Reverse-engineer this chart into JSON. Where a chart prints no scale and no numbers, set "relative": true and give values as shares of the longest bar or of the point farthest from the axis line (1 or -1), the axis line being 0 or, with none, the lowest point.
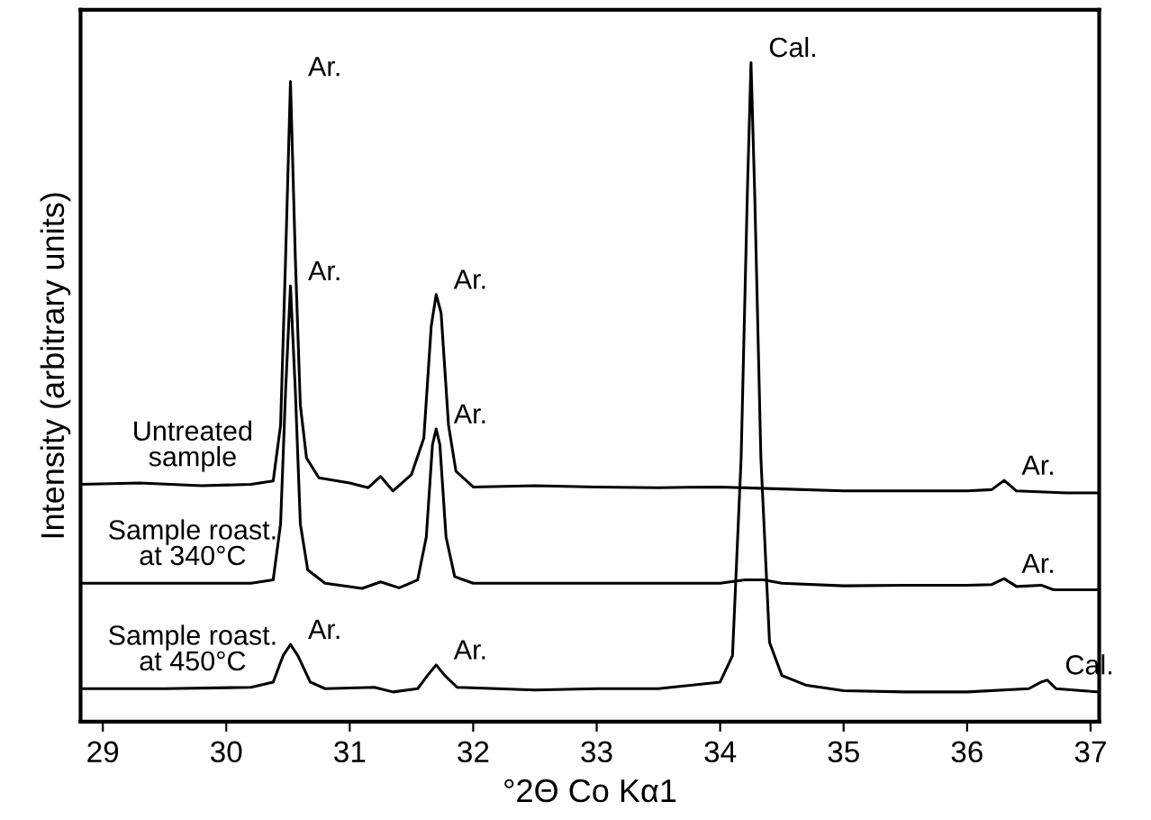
{
  "chart_data": {
    "type": "line",
    "relative": true,
    "xlabel": "°2Θ Co Kα1",
    "ylabel": "Intensity (arbitrary units)",
    "xlim": [
      28.82,
      37.07
    ],
    "xticks": [
      29,
      30,
      31,
      32,
      33,
      34,
      35,
      36,
      37
    ],
    "grid": false,
    "legend": false,
    "marker": "none",
    "line_style": "solid",
    "tick_labels": "x",
    "series": [
      {
        "name": "Untreated\nsample",
        "color": "#000000",
        "x": [
          28.82,
          29.3,
          29.8,
          30.2,
          30.38,
          30.44,
          30.48,
          30.52,
          30.56,
          30.6,
          30.65,
          30.75,
          31.0,
          31.15,
          31.25,
          31.35,
          31.5,
          31.6,
          31.66,
          31.7,
          31.74,
          31.8,
          31.86,
          32.0,
          32.5,
          33.0,
          33.5,
          34.0,
          34.5,
          35.0,
          35.5,
          36.0,
          36.2,
          36.3,
          36.4,
          36.8,
          37.07
        ],
        "values": [
          0.36,
          0.362,
          0.358,
          0.36,
          0.365,
          0.45,
          0.7,
          0.971,
          0.7,
          0.48,
          0.4,
          0.37,
          0.362,
          0.355,
          0.372,
          0.35,
          0.375,
          0.43,
          0.6,
          0.648,
          0.62,
          0.45,
          0.38,
          0.356,
          0.358,
          0.356,
          0.355,
          0.356,
          0.353,
          0.35,
          0.35,
          0.35,
          0.352,
          0.366,
          0.35,
          0.347,
          0.347
        ]
      },
      {
        "name": "Sample roast.\nat 340°C",
        "color": "#000000",
        "x": [
          28.82,
          29.5,
          30.2,
          30.38,
          30.44,
          30.48,
          30.52,
          30.56,
          30.6,
          30.66,
          30.8,
          31.1,
          31.25,
          31.4,
          31.55,
          31.62,
          31.67,
          31.7,
          31.73,
          31.78,
          31.85,
          32.0,
          33.0,
          34.0,
          34.2,
          34.35,
          34.5,
          35.0,
          35.5,
          36.0,
          36.2,
          36.3,
          36.4,
          36.6,
          36.7,
          37.07
        ],
        "values": [
          0.21,
          0.21,
          0.21,
          0.215,
          0.3,
          0.5,
          0.661,
          0.5,
          0.3,
          0.23,
          0.21,
          0.202,
          0.212,
          0.203,
          0.215,
          0.28,
          0.42,
          0.444,
          0.42,
          0.28,
          0.22,
          0.21,
          0.21,
          0.21,
          0.215,
          0.215,
          0.21,
          0.206,
          0.207,
          0.207,
          0.208,
          0.217,
          0.205,
          0.207,
          0.2,
          0.2
        ]
      },
      {
        "name": "Sample roast.\nat 450°C",
        "color": "#000000",
        "x": [
          28.82,
          29.5,
          30.2,
          30.38,
          30.46,
          30.52,
          30.58,
          30.68,
          30.8,
          31.2,
          31.35,
          31.55,
          31.63,
          31.7,
          31.77,
          31.87,
          32.5,
          33.0,
          33.5,
          34.0,
          34.1,
          34.17,
          34.22,
          34.25,
          34.28,
          34.33,
          34.4,
          34.5,
          34.7,
          35.0,
          35.5,
          36.0,
          36.5,
          36.6,
          36.65,
          36.72,
          37.07
        ],
        "values": [
          0.05,
          0.05,
          0.052,
          0.06,
          0.1,
          0.117,
          0.1,
          0.06,
          0.05,
          0.052,
          0.045,
          0.05,
          0.07,
          0.086,
          0.07,
          0.052,
          0.048,
          0.05,
          0.05,
          0.06,
          0.1,
          0.4,
          0.8,
          1.0,
          0.8,
          0.4,
          0.12,
          0.07,
          0.055,
          0.047,
          0.045,
          0.045,
          0.05,
          0.06,
          0.063,
          0.05,
          0.045
        ]
      }
    ],
    "annotations": [
      {
        "text": "Ar.",
        "x": 30.52,
        "y": 0.971
      },
      {
        "text": "Ar.",
        "x": 31.7,
        "y": 0.648
      },
      {
        "text": "Ar.",
        "x": 36.3,
        "y": 0.366
      },
      {
        "text": "Ar.",
        "x": 30.52,
        "y": 0.661
      },
      {
        "text": "Ar.",
        "x": 31.7,
        "y": 0.444
      },
      {
        "text": "Ar.",
        "x": 36.3,
        "y": 0.217
      },
      {
        "text": "Ar.",
        "x": 30.52,
        "y": 0.117
      },
      {
        "text": "Ar.",
        "x": 31.7,
        "y": 0.086
      },
      {
        "text": "Cal.",
        "x": 34.25,
        "y": 1.0
      },
      {
        "text": "Cal.",
        "x": 36.65,
        "y": 0.063
      }
    ]
  }
}
